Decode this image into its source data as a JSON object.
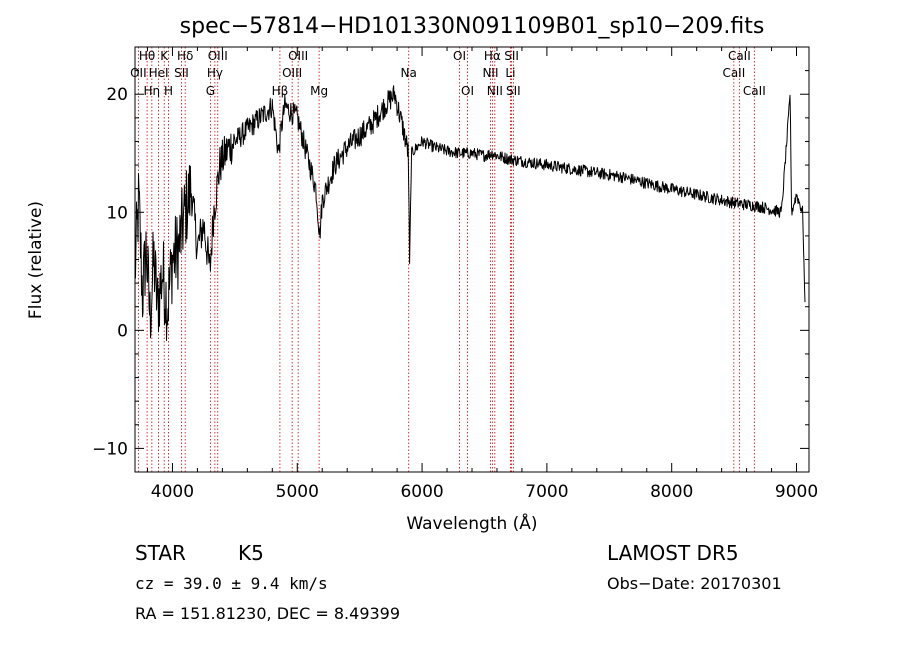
{
  "chart_data": {
    "type": "line",
    "title": "spec−57814−HD101330N091109B01_sp10−209.fits",
    "xlabel": "Wavelength (Å)",
    "ylabel": "Flux (relative)",
    "xlim": [
      3700,
      9100
    ],
    "ylim": [
      -12,
      24
    ],
    "x_ticks": [
      4000,
      5000,
      6000,
      7000,
      8000,
      9000
    ],
    "y_ticks": [
      -10,
      0,
      10,
      20
    ],
    "y_tick_labels": [
      "−10",
      "0",
      "10",
      "20"
    ],
    "grid": false,
    "line_color": "#000000",
    "marker_color": "#cc0000",
    "spectrum_anchors": [
      [
        3700,
        5
      ],
      [
        3730,
        11
      ],
      [
        3760,
        3
      ],
      [
        3790,
        7
      ],
      [
        3820,
        1
      ],
      [
        3850,
        6
      ],
      [
        3880,
        2
      ],
      [
        3920,
        5
      ],
      [
        3960,
        2
      ],
      [
        4000,
        6
      ],
      [
        4050,
        7
      ],
      [
        4100,
        10
      ],
      [
        4150,
        12
      ],
      [
        4200,
        7
      ],
      [
        4250,
        9
      ],
      [
        4300,
        5
      ],
      [
        4330,
        10
      ],
      [
        4380,
        14
      ],
      [
        4450,
        15.5
      ],
      [
        4500,
        16
      ],
      [
        4600,
        17
      ],
      [
        4700,
        18
      ],
      [
        4800,
        19
      ],
      [
        4850,
        15
      ],
      [
        4870,
        17
      ],
      [
        4900,
        19
      ],
      [
        5000,
        18
      ],
      [
        5050,
        16
      ],
      [
        5100,
        14
      ],
      [
        5150,
        12
      ],
      [
        5180,
        8
      ],
      [
        5200,
        11
      ],
      [
        5300,
        14
      ],
      [
        5400,
        15.5
      ],
      [
        5500,
        16.5
      ],
      [
        5600,
        17.5
      ],
      [
        5700,
        19
      ],
      [
        5780,
        20
      ],
      [
        5850,
        17
      ],
      [
        5890,
        15
      ],
      [
        5900,
        5.5
      ],
      [
        5915,
        15
      ],
      [
        6000,
        16
      ],
      [
        6100,
        15.5
      ],
      [
        6200,
        15.2
      ],
      [
        6300,
        15
      ],
      [
        6400,
        15
      ],
      [
        6500,
        14.8
      ],
      [
        6563,
        15
      ],
      [
        6600,
        14.8
      ],
      [
        6700,
        14.5
      ],
      [
        7000,
        14
      ],
      [
        7300,
        13.5
      ],
      [
        7600,
        13
      ],
      [
        7900,
        12.2
      ],
      [
        8200,
        11.5
      ],
      [
        8500,
        10.8
      ],
      [
        8700,
        10.5
      ],
      [
        8880,
        10
      ],
      [
        8950,
        20
      ],
      [
        8960,
        10
      ],
      [
        9000,
        11.5
      ],
      [
        9050,
        10
      ],
      [
        9070,
        1
      ],
      [
        9100,
        4
      ]
    ],
    "spectral_lines": [
      {
        "name": "Hθ",
        "x": 3797,
        "row": 0
      },
      {
        "name": "K",
        "x": 3934,
        "row": 0
      },
      {
        "name": "Hδ",
        "x": 4102,
        "row": 0
      },
      {
        "name": "OIII",
        "x": 4363,
        "row": 0
      },
      {
        "name": "OIII",
        "x": 5007,
        "row": 0
      },
      {
        "name": "OI",
        "x": 6300,
        "row": 0
      },
      {
        "name": "Hα",
        "x": 6563,
        "row": 0
      },
      {
        "name": "SII",
        "x": 6717,
        "row": 0
      },
      {
        "name": "CaII",
        "x": 8542,
        "row": 0
      },
      {
        "name": "OII",
        "x": 3727,
        "row": 1
      },
      {
        "name": "HeI",
        "x": 3889,
        "row": 1
      },
      {
        "name": "SII",
        "x": 4072,
        "row": 1
      },
      {
        "name": "Hγ",
        "x": 4340,
        "row": 1
      },
      {
        "name": "OIII",
        "x": 4959,
        "row": 1
      },
      {
        "name": "Na",
        "x": 5893,
        "row": 1
      },
      {
        "name": "NII",
        "x": 6548,
        "row": 1
      },
      {
        "name": "Li",
        "x": 6708,
        "row": 1
      },
      {
        "name": "CaII",
        "x": 8498,
        "row": 1
      },
      {
        "name": "Hη",
        "x": 3835,
        "row": 2
      },
      {
        "name": "H",
        "x": 3969,
        "row": 2
      },
      {
        "name": "G",
        "x": 4304,
        "row": 2
      },
      {
        "name": "Hβ",
        "x": 4861,
        "row": 2
      },
      {
        "name": "Mg",
        "x": 5175,
        "row": 2
      },
      {
        "name": "OI",
        "x": 6364,
        "row": 2
      },
      {
        "name": "NII",
        "x": 6583,
        "row": 2
      },
      {
        "name": "SII",
        "x": 6731,
        "row": 2
      },
      {
        "name": "CaII",
        "x": 8662,
        "row": 2
      }
    ]
  },
  "info": {
    "class_label": "STAR",
    "subclass": "K5",
    "cz": "cz = 39.0 ± 9.4 km/s",
    "radec": "RA = 151.81230, DEC =   8.49399",
    "survey": "LAMOST DR5",
    "obs_date": "Obs−Date: 20170301"
  }
}
